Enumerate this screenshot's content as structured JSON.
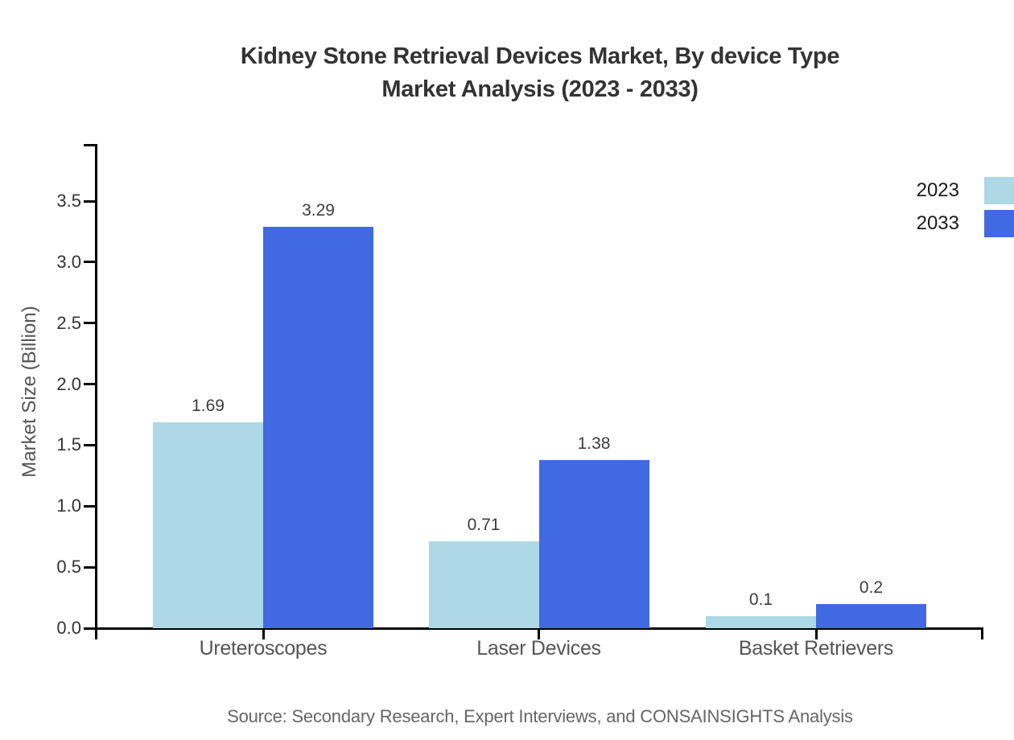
{
  "header": {
    "line1": "Kidney Stone Retrieval Devices Market, By device Type",
    "line2": "Market Analysis (2023 - 2033)"
  },
  "source": {
    "note": "Source: Secondary Research, Expert Interviews, and CONSAINSIGHTS Analysis"
  },
  "colors": {
    "series_2023": "#ADD8E6",
    "series_2033": "#4169E1",
    "axis": "#000000",
    "title_text": "#333333",
    "tick_label_text": "#333333",
    "category_label_text": "#555555",
    "value_label_text": "#3d3d3d",
    "axis_label_text": "#555555",
    "source_text": "#666666",
    "legend_label_text": "#1a1a1a",
    "background": "#ffffff"
  },
  "chart_data": {
    "type": "bar",
    "title": "Kidney Stone Retrieval Devices Market, By device Type Market Analysis (2023 - 2033)",
    "categories": [
      "Ureteroscopes",
      "Laser Devices",
      "Basket Retrievers"
    ],
    "series": [
      {
        "name": "2023",
        "color": "#ADD8E6",
        "values": [
          1.69,
          0.71,
          0.1
        ]
      },
      {
        "name": "2033",
        "color": "#4169E1",
        "values": [
          3.29,
          1.38,
          0.2
        ]
      }
    ],
    "xlabel": "",
    "ylabel": "Market Size (Billion)",
    "ylim": [
      0,
      3.96
    ],
    "yticks": [
      0,
      0.5,
      1,
      1.5,
      2,
      2.5,
      3,
      3.5
    ],
    "ytick_format": "one_decimal",
    "value_labels": true,
    "grid": false,
    "legend_position": "top-right"
  }
}
